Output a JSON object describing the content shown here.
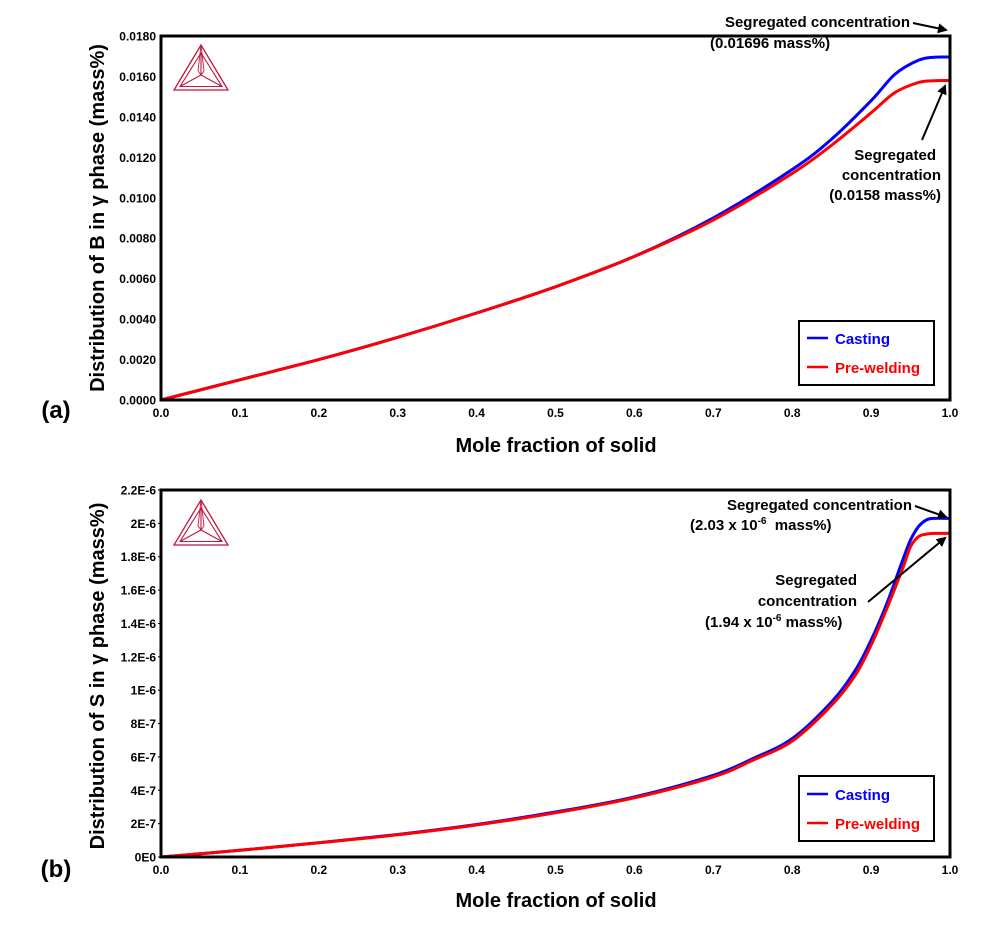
{
  "chart_data": [
    {
      "panel_label": "(a)",
      "type": "line",
      "title": "",
      "xlabel": "Mole fraction of solid",
      "ylabel": "Distribution of B in γ phase (mass%)",
      "xlim": [
        0.0,
        1.0
      ],
      "ylim": [
        0.0,
        0.018
      ],
      "x_ticks": [
        "0.0",
        "0.1",
        "0.2",
        "0.3",
        "0.4",
        "0.5",
        "0.6",
        "0.7",
        "0.8",
        "0.9",
        "1.0"
      ],
      "y_ticks": [
        "0.0000",
        "0.0020",
        "0.0040",
        "0.0060",
        "0.0080",
        "0.0100",
        "0.0120",
        "0.0140",
        "0.0160",
        "0.0180"
      ],
      "grid": false,
      "legend": {
        "position": "bottom-right",
        "entries": [
          "Casting",
          "Pre-welding"
        ]
      },
      "series": [
        {
          "name": "Casting",
          "color": "#0000ff",
          "x": [
            0.0,
            0.1,
            0.2,
            0.3,
            0.4,
            0.5,
            0.6,
            0.7,
            0.8,
            0.85,
            0.9,
            0.93,
            0.96,
            0.98,
            1.0
          ],
          "y": [
            0.0,
            0.001,
            0.002,
            0.0031,
            0.0043,
            0.0056,
            0.0071,
            0.009,
            0.0114,
            0.0129,
            0.0148,
            0.0161,
            0.0168,
            0.01695,
            0.01696
          ]
        },
        {
          "name": "Pre-welding",
          "color": "#ff0000",
          "x": [
            0.0,
            0.1,
            0.2,
            0.3,
            0.4,
            0.5,
            0.6,
            0.7,
            0.8,
            0.85,
            0.9,
            0.93,
            0.96,
            0.98,
            1.0
          ],
          "y": [
            0.0,
            0.001,
            0.002,
            0.0031,
            0.0043,
            0.0056,
            0.0071,
            0.0089,
            0.0112,
            0.0126,
            0.0142,
            0.0152,
            0.0157,
            0.01579,
            0.0158
          ]
        }
      ],
      "annotations": [
        {
          "lines": [
            "Segregated concentration",
            "(0.01696 mass%)"
          ],
          "points_to": [
            1.0,
            0.01696
          ]
        },
        {
          "lines": [
            "Segregated",
            "concentration",
            "(0.0158 mass%)"
          ],
          "points_to": [
            1.0,
            0.0158
          ]
        }
      ]
    },
    {
      "panel_label": "(b)",
      "type": "line",
      "title": "",
      "xlabel": "Mole fraction of solid",
      "ylabel": "Distribution of S in γ phase (mass%)",
      "xlim": [
        0.0,
        1.0
      ],
      "ylim": [
        0.0,
        2.2e-06
      ],
      "x_ticks": [
        "0.0",
        "0.1",
        "0.2",
        "0.3",
        "0.4",
        "0.5",
        "0.6",
        "0.7",
        "0.8",
        "0.9",
        "1.0"
      ],
      "y_ticks": [
        "0E0",
        "2E-7",
        "4E-7",
        "6E-7",
        "8E-7",
        "1E-6",
        "1.2E-6",
        "1.4E-6",
        "1.6E-6",
        "1.8E-6",
        "2E-6",
        "2.2E-6"
      ],
      "grid": false,
      "legend": {
        "position": "bottom-right",
        "entries": [
          "Casting",
          "Pre-welding"
        ]
      },
      "series": [
        {
          "name": "Casting",
          "color": "#0000ff",
          "x": [
            0.0,
            0.1,
            0.2,
            0.3,
            0.4,
            0.5,
            0.6,
            0.7,
            0.75,
            0.8,
            0.85,
            0.88,
            0.9,
            0.92,
            0.94,
            0.95,
            0.96,
            0.97,
            0.98,
            1.0
          ],
          "y": [
            0.0,
            4e-08,
            8.5e-08,
            1.35e-07,
            1.95e-07,
            2.7e-07,
            3.6e-07,
            4.9e-07,
            5.9e-07,
            7.1e-07,
            9.3e-07,
            1.12e-06,
            1.3e-06,
            1.52e-06,
            1.78e-06,
            1.9e-06,
            1.98e-06,
            2.02e-06,
            2.03e-06,
            2.03e-06
          ]
        },
        {
          "name": "Pre-welding",
          "color": "#ff0000",
          "x": [
            0.0,
            0.1,
            0.2,
            0.3,
            0.4,
            0.5,
            0.6,
            0.7,
            0.75,
            0.8,
            0.85,
            0.88,
            0.9,
            0.92,
            0.94,
            0.95,
            0.96,
            0.97,
            0.98,
            1.0
          ],
          "y": [
            0.0,
            4e-08,
            8.5e-08,
            1.33e-07,
            1.92e-07,
            2.65e-07,
            3.55e-07,
            4.8e-07,
            5.8e-07,
            6.95e-07,
            9.1e-07,
            1.09e-06,
            1.27e-06,
            1.49e-06,
            1.73e-06,
            1.86e-06,
            1.92e-06,
            1.935e-06,
            1.94e-06,
            1.94e-06
          ]
        }
      ],
      "annotations": [
        {
          "lines": [
            "Segregated concentration",
            "(2.03 x 10",
            "-6",
            "  mass%)"
          ],
          "points_to": [
            1.0,
            2.03e-06
          ]
        },
        {
          "lines": [
            "Segregated",
            "concentration",
            "(1.94 x 10",
            "-6",
            " mass%)"
          ],
          "points_to": [
            1.0,
            1.94e-06
          ]
        }
      ]
    }
  ]
}
